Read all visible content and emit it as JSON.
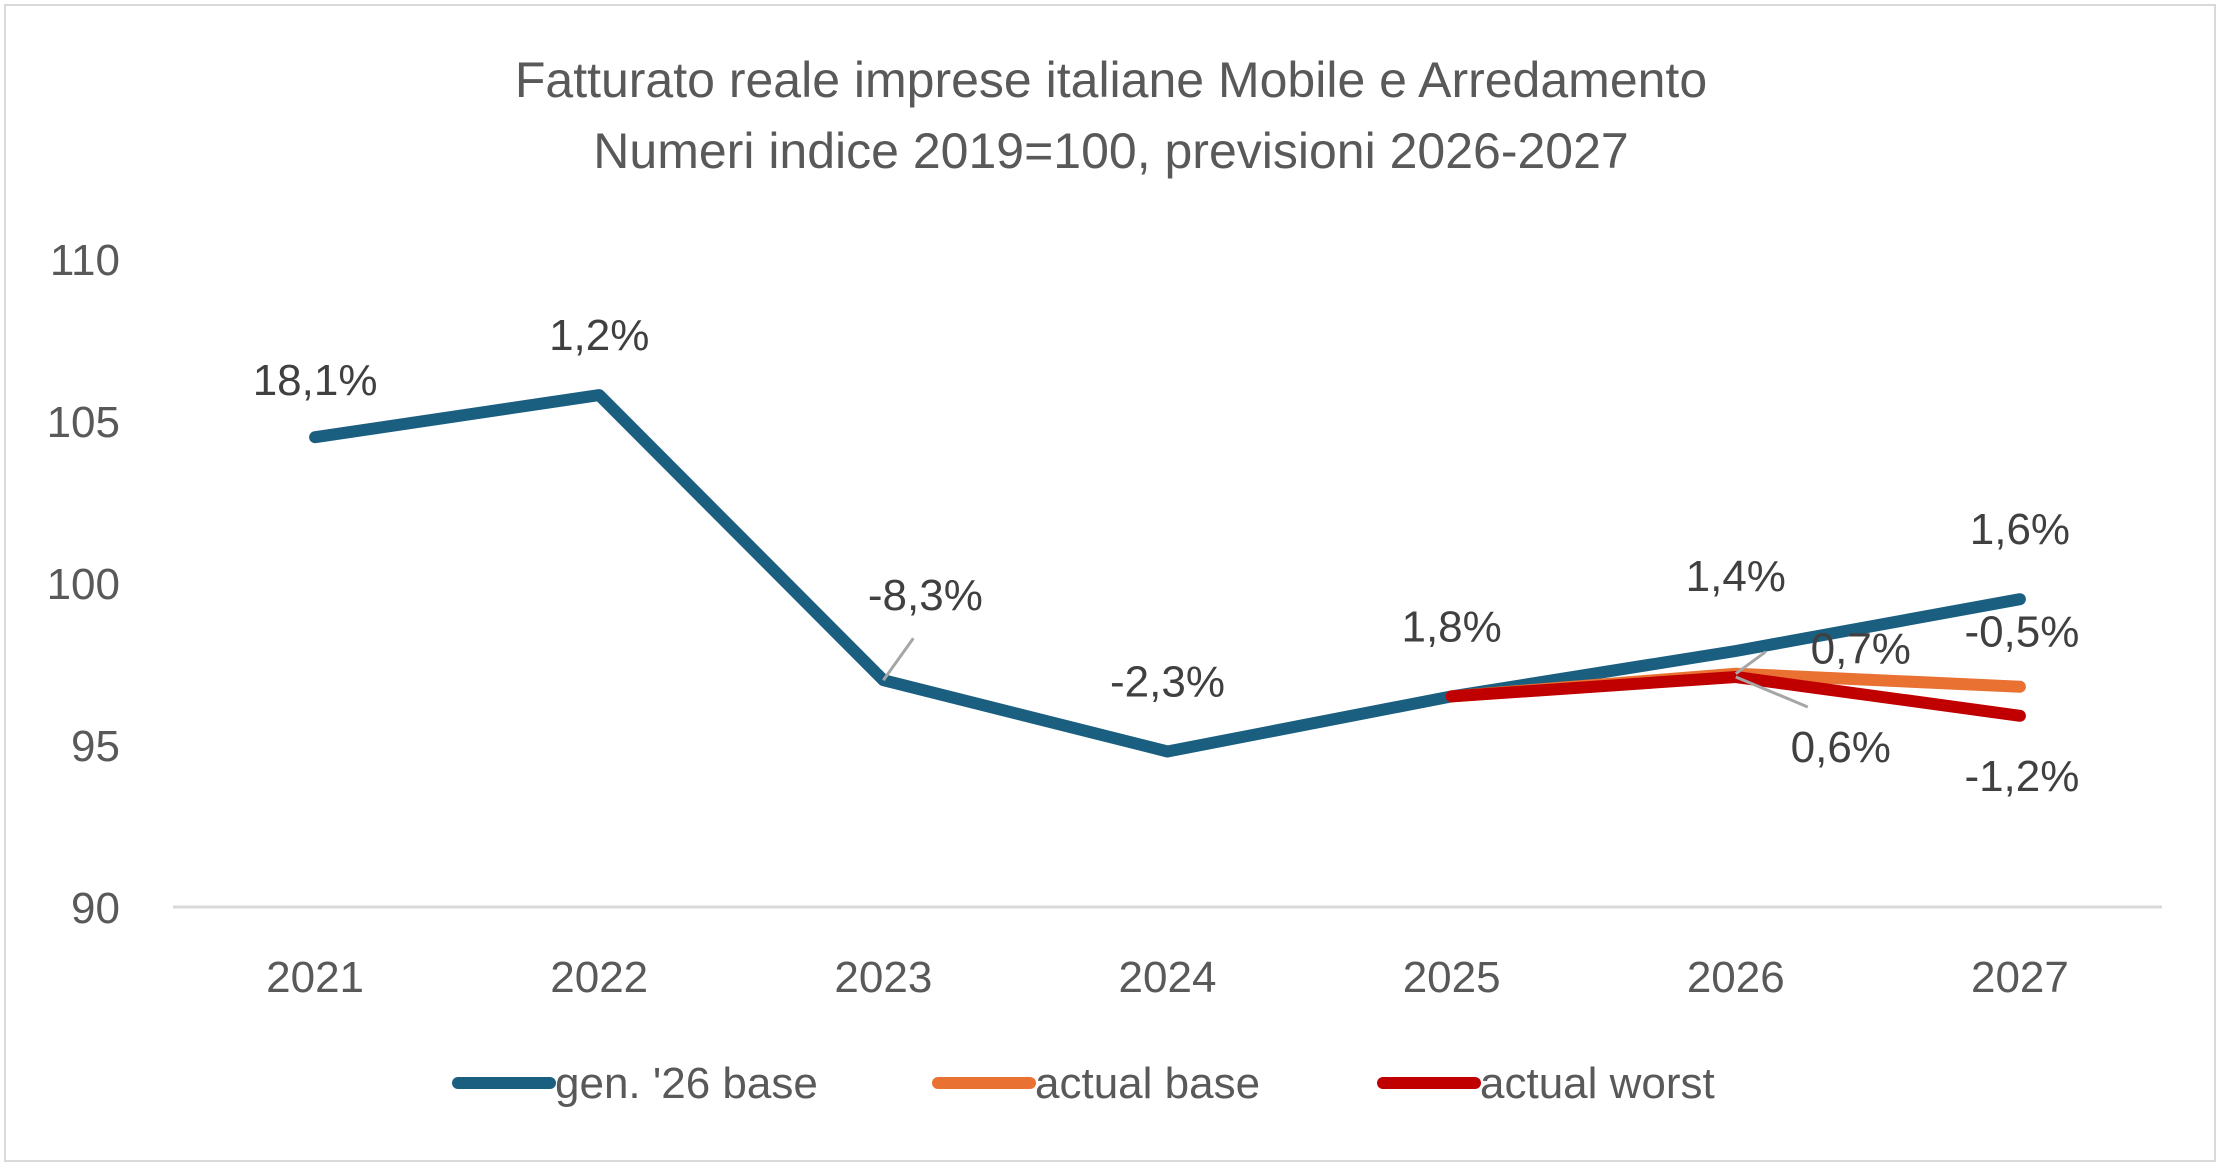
{
  "chart_data": {
    "type": "line",
    "title": "Fatturato reale imprese italiane Mobile e Arredamento",
    "subtitle": "Numeri indice 2019=100, previsioni 2026-2027",
    "xlabel": "",
    "ylabel": "",
    "categories": [
      "2021",
      "2022",
      "2023",
      "2024",
      "2025",
      "2026",
      "2027"
    ],
    "ylim": [
      90,
      110
    ],
    "yticks": [
      90,
      95,
      100,
      105,
      110
    ],
    "grid": "baseline only",
    "legend_position": "bottom",
    "series": [
      {
        "name": "gen. '26 base",
        "color": "#1B5F80",
        "values": [
          104.5,
          105.8,
          97.0,
          94.8,
          96.5,
          97.9,
          99.5
        ],
        "labels": [
          "18,1%",
          "1,2%",
          "-8,3%",
          "-2,3%",
          "1,8%",
          "1,4%",
          "1,6%"
        ]
      },
      {
        "name": "actual base",
        "color": "#E97132",
        "values": [
          null,
          null,
          null,
          null,
          96.5,
          97.2,
          96.8
        ],
        "labels": [
          null,
          null,
          null,
          null,
          null,
          "0,7%",
          "-0,5%"
        ]
      },
      {
        "name": "actual worst",
        "color": "#C00000",
        "values": [
          null,
          null,
          null,
          null,
          96.5,
          97.1,
          95.9
        ],
        "labels": [
          null,
          null,
          null,
          null,
          null,
          "0,6%",
          "-1,2%"
        ]
      }
    ]
  }
}
